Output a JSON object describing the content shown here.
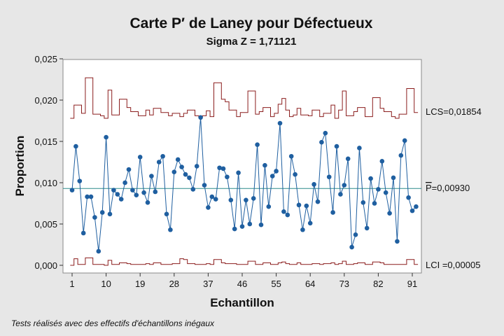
{
  "chart_data": {
    "type": "line",
    "title": "Carte P′ de Laney pour Défectueux",
    "subtitle": "Sigma Z = 1,71121",
    "xlabel": "Echantillon",
    "ylabel": "Proportion",
    "x_ticks": [
      1,
      10,
      19,
      28,
      37,
      46,
      55,
      64,
      73,
      82,
      91
    ],
    "y_ticks": [
      "0,000",
      "0,005",
      "0,010",
      "0,015",
      "0,020",
      "0,025"
    ],
    "y_tick_values": [
      0,
      0.005,
      0.01,
      0.015,
      0.02,
      0.025
    ],
    "xlim": [
      1,
      92
    ],
    "ylim": [
      -0.0005,
      0.025
    ],
    "series": [
      {
        "values": [
          0.0091,
          0.0144,
          0.0102,
          0.0039,
          0.0083,
          0.0083,
          0.0058,
          0.0017,
          0.0064,
          0.0155,
          0.0062,
          0.0091,
          0.0086,
          0.008,
          0.01,
          0.0116,
          0.0091,
          0.0085,
          0.0131,
          0.0088,
          0.0076,
          0.0108,
          0.0089,
          0.0125,
          0.0132,
          0.0062,
          0.0043,
          0.0113,
          0.0128,
          0.0119,
          0.011,
          0.0106,
          0.0092,
          0.012,
          0.0179,
          0.0097,
          0.007,
          0.0083,
          0.008,
          0.0118,
          0.0117,
          0.0107,
          0.0079,
          0.0044,
          0.0112,
          0.0047,
          0.0079,
          0.005,
          0.0081,
          0.0146,
          0.0049,
          0.0121,
          0.0071,
          0.0108,
          0.0114,
          0.0172,
          0.0065,
          0.0061,
          0.0132,
          0.011,
          0.0073,
          0.0043,
          0.0072,
          0.0051,
          0.0098,
          0.0077,
          0.0149,
          0.016,
          0.0107,
          0.0064,
          0.0144,
          0.0086,
          0.0097,
          0.0129,
          0.0022,
          0.0037,
          0.0142,
          0.0076,
          0.0045,
          0.0105,
          0.0075,
          0.0092,
          0.0126,
          0.0088,
          0.0063,
          0.0106,
          0.0029,
          0.0133,
          0.0151,
          0.0082,
          0.0066,
          0.0071
        ]
      }
    ],
    "center_line": 0.0093,
    "ucl_steps": [
      0.0178,
      0.0194,
      0.0194,
      0.0184,
      0.0227,
      0.0227,
      0.0183,
      0.0183,
      0.0181,
      0.0178,
      0.0212,
      0.0182,
      0.0182,
      0.0201,
      0.0201,
      0.0191,
      0.0186,
      0.0186,
      0.0181,
      0.0181,
      0.0188,
      0.0182,
      0.019,
      0.019,
      0.0185,
      0.0185,
      0.0181,
      0.0184,
      0.0184,
      0.018,
      0.0184,
      0.0188,
      0.0188,
      0.0181,
      0.018,
      0.0181,
      0.0187,
      0.018,
      0.0221,
      0.0221,
      0.0201,
      0.0198,
      0.0188,
      0.0188,
      0.018,
      0.0185,
      0.0185,
      0.0211,
      0.0211,
      0.0183,
      0.0186,
      0.0191,
      0.0191,
      0.018,
      0.0184,
      0.0195,
      0.0202,
      0.0188,
      0.018,
      0.0182,
      0.019,
      0.0182,
      0.0182,
      0.0181,
      0.0188,
      0.0188,
      0.018,
      0.0184,
      0.0184,
      0.0194,
      0.0178,
      0.0188,
      0.0211,
      0.0181,
      0.0181,
      0.0186,
      0.0191,
      0.0191,
      0.018,
      0.018,
      0.0203,
      0.0203,
      0.019,
      0.0186,
      0.0186,
      0.018,
      0.0178,
      0.0183,
      0.0183,
      0.0214,
      0.0214,
      0.0185
    ],
    "lcl_steps": [
      0.0,
      0.0008,
      0.0001,
      0.0001,
      0.0009,
      0.0009,
      0.0001,
      0.0001,
      0.0001,
      0.0,
      0.0006,
      0.0001,
      0.0001,
      0.0003,
      0.0003,
      0.0002,
      0.0001,
      0.0001,
      0.0001,
      0.0001,
      0.0002,
      0.0001,
      0.0003,
      0.0003,
      0.0001,
      0.0001,
      0.0001,
      0.0002,
      0.0002,
      0.0008,
      0.0007,
      0.0002,
      0.0002,
      0.0001,
      0.0001,
      0.0001,
      0.0002,
      0.0001,
      0.0007,
      0.0007,
      0.0003,
      0.0002,
      0.0002,
      0.0002,
      0.0001,
      0.0001,
      0.0001,
      0.0005,
      0.0005,
      0.0001,
      0.0001,
      0.0003,
      0.0003,
      0.0001,
      0.0001,
      0.0003,
      0.0004,
      0.0002,
      0.0001,
      0.0001,
      0.0003,
      0.0001,
      0.0001,
      0.0001,
      0.0002,
      0.0002,
      0.0001,
      0.0002,
      0.0002,
      0.0003,
      0.0001,
      0.0002,
      0.0005,
      0.0001,
      0.0001,
      0.0002,
      0.0003,
      0.0003,
      0.0001,
      0.0001,
      0.0004,
      0.0004,
      0.0003,
      0.0001,
      0.0001,
      0.0001,
      0.0001,
      0.0001,
      0.0001,
      0.0007,
      0.0007,
      0.0001
    ],
    "labels": {
      "ucl": "LCS=0,01854",
      "center_prefix": "P",
      "center_value": "=0,00930",
      "lcl": "LCI =0,00005"
    },
    "footnote": "Tests réalisés avec des effectifs d'échantillons inégaux"
  },
  "colors": {
    "background": "#e7e7e7",
    "plot_area": "#ffffff",
    "data": "#1f5fa0",
    "center": "#2c8a8a",
    "limits": "#8b1d1d"
  }
}
